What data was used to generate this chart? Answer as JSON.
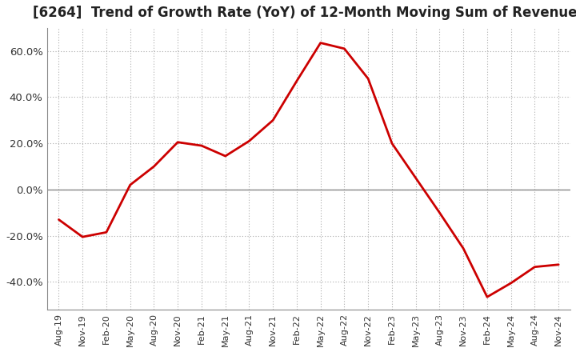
{
  "title": "[6264]  Trend of Growth Rate (YoY) of 12-Month Moving Sum of Revenues",
  "title_fontsize": 12,
  "line_color": "#CC0000",
  "background_color": "#FFFFFF",
  "plot_bg_color": "#FFFFFF",
  "grid_color": "#AAAAAA",
  "ylim": [
    -0.52,
    0.7
  ],
  "yticks": [
    -0.4,
    -0.2,
    0.0,
    0.2,
    0.4,
    0.6
  ],
  "x_labels": [
    "Aug-19",
    "Nov-19",
    "Feb-20",
    "May-20",
    "Aug-20",
    "Nov-20",
    "Feb-21",
    "May-21",
    "Aug-21",
    "Nov-21",
    "Feb-22",
    "May-22",
    "Aug-22",
    "Nov-22",
    "Feb-23",
    "May-23",
    "Aug-23",
    "Nov-23",
    "Feb-24",
    "May-24",
    "Aug-24",
    "Nov-24"
  ],
  "values": [
    -0.13,
    -0.205,
    -0.185,
    0.02,
    0.1,
    0.205,
    0.19,
    0.145,
    0.21,
    0.3,
    0.47,
    0.635,
    0.61,
    0.48,
    0.2,
    0.05,
    -0.1,
    -0.255,
    -0.465,
    -0.405,
    -0.335,
    -0.325
  ]
}
